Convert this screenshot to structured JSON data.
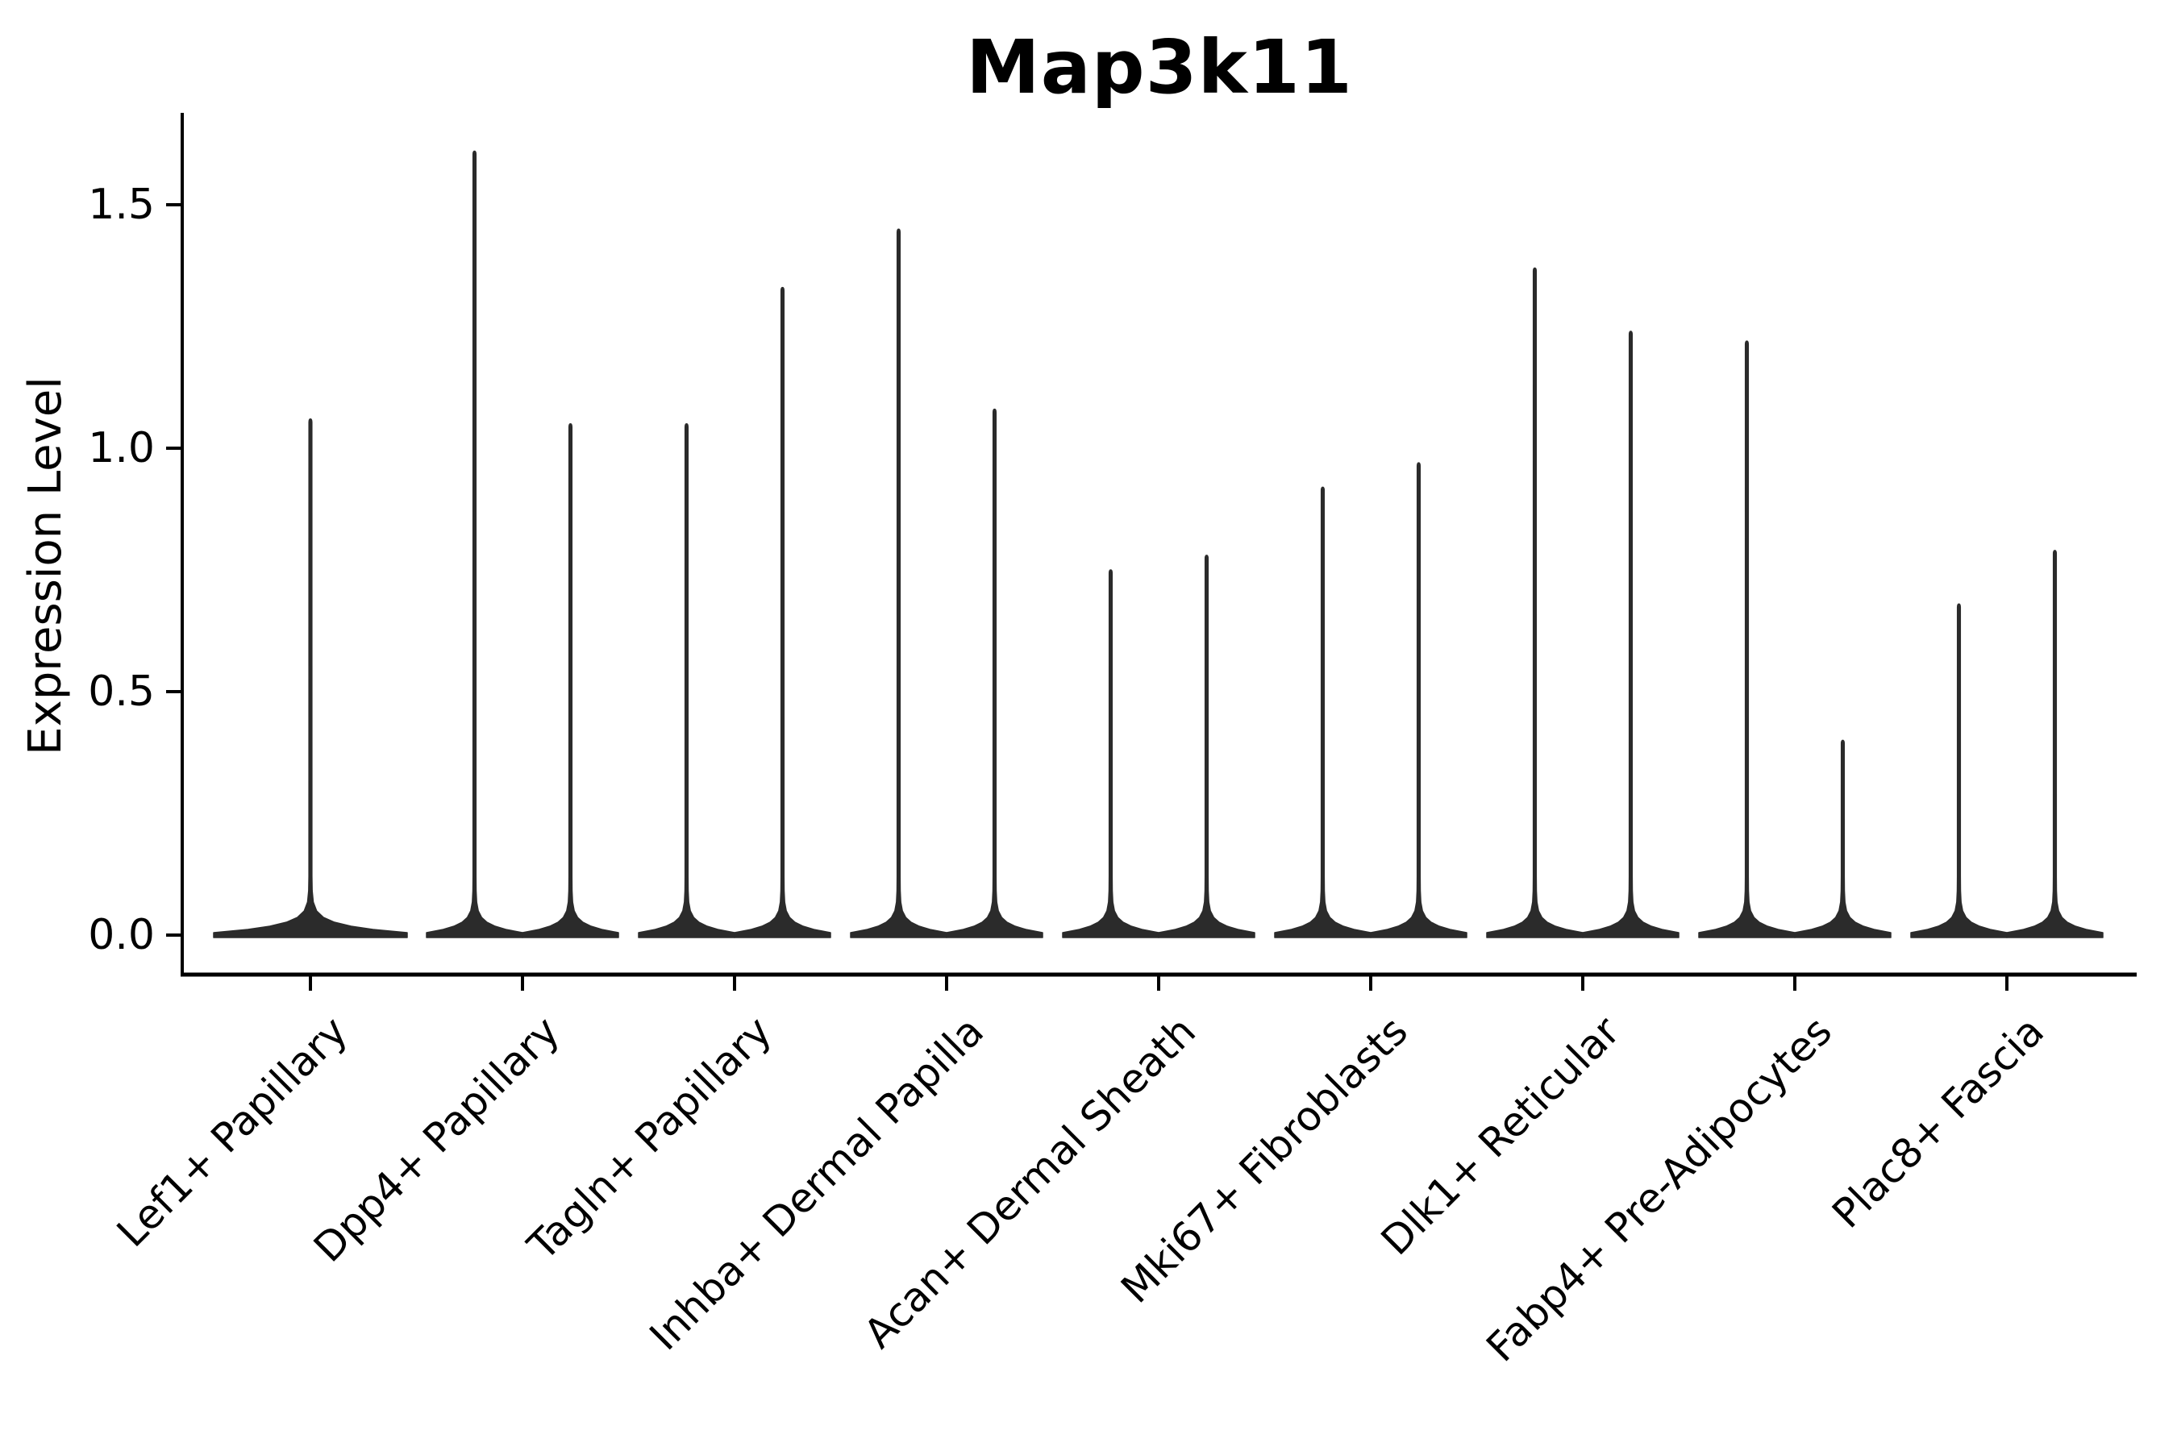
{
  "title": "Map3k11",
  "chart_data": {
    "type": "violin",
    "title": "Map3k11",
    "xlabel": "",
    "ylabel": "Expression Level",
    "ylim": [
      -0.08,
      1.69
    ],
    "yticks": [
      0.0,
      0.5,
      1.0,
      1.5
    ],
    "ytick_labels": [
      "0.0",
      "0.5",
      "1.0",
      "1.5"
    ],
    "grid": false,
    "legend": "none",
    "description": "Seurat-style violin plot of Map3k11 expression; each violin has nearly all cells at 0 (wide flat base) with a thin spike to the maximum expressed value. Categories 2-9 contain two side-by-side split violins; category 1 contains a single full-width violin.",
    "categories": [
      {
        "label": "Lef1+ Papillary",
        "violin_maxima": [
          1.06
        ]
      },
      {
        "label": "Dpp4+ Papillary",
        "violin_maxima": [
          1.61,
          1.05
        ]
      },
      {
        "label": "Tagln+ Papillary",
        "violin_maxima": [
          1.05,
          1.33
        ]
      },
      {
        "label": "Inhba+ Dermal Papilla",
        "violin_maxima": [
          1.45,
          1.08
        ]
      },
      {
        "label": "Acan+ Dermal Sheath",
        "violin_maxima": [
          0.75,
          0.78
        ]
      },
      {
        "label": "Mki67+ Fibroblasts",
        "violin_maxima": [
          0.92,
          0.97
        ]
      },
      {
        "label": "Dlk1+ Reticular",
        "violin_maxima": [
          1.37,
          1.24
        ]
      },
      {
        "label": "Fabp4+ Pre-Adipocytes",
        "violin_maxima": [
          1.22,
          0.4
        ]
      },
      {
        "label": "Plac8+ Fascia",
        "violin_maxima": [
          0.68,
          0.79
        ]
      }
    ],
    "baseline_value": 0.0,
    "colors": {
      "violin": "#2b2b2b",
      "axis": "#000000",
      "text": "#000000",
      "background": "#ffffff"
    }
  }
}
